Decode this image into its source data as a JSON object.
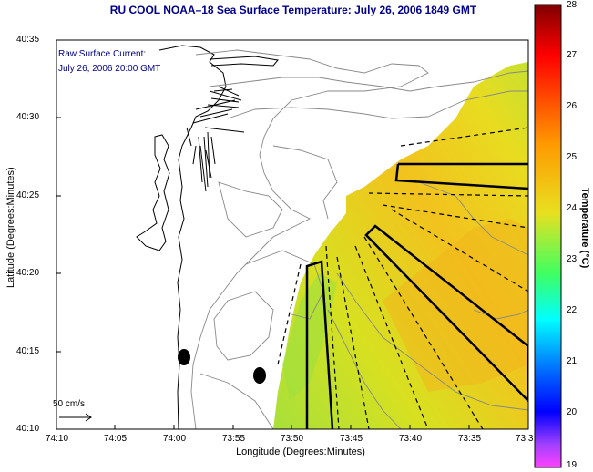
{
  "title": "RU COOL  NOAA–18  Sea Surface Temperature:  July 26, 2006 1849 GMT",
  "annotation_line1": "Raw Surface Current:",
  "annotation_line2": "July 26, 2006 20:00 GMT",
  "scale_label": "50 cm/s",
  "axes": {
    "xlabel": "Longitude (Degrees:Minutes)",
    "ylabel": "Latitude (Degrees:Minutes)",
    "x_ticks": [
      "74:10",
      "74:05",
      "74:00",
      "73:55",
      "73:50",
      "73:45",
      "73:40",
      "73:35",
      "73:3"
    ],
    "y_ticks": [
      "40:35",
      "40:30",
      "40:25",
      "40:20",
      "40:15",
      "40:10"
    ]
  },
  "colorbar": {
    "label": "Temperature (°C)",
    "min": 19,
    "max": 28,
    "ticks": [
      "28",
      "27",
      "26",
      "25",
      "24",
      "23",
      "22",
      "21",
      "20",
      "19"
    ]
  },
  "colors": {
    "title": "#00008b",
    "sst_warm": "#f2c21e",
    "sst_mid": "#d8e020",
    "sst_cool": "#a8e03a"
  }
}
